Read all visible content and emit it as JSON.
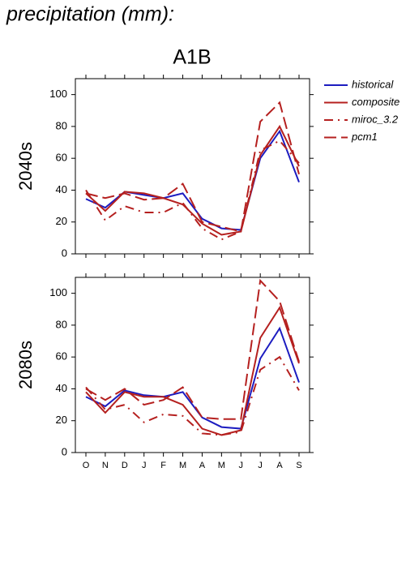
{
  "heading": "precipitation (mm):",
  "scenario": "A1B",
  "chart_data": [
    {
      "type": "line",
      "ylabel": "2040s",
      "ylim": [
        0,
        110
      ],
      "yticks": [
        0,
        20,
        40,
        60,
        80,
        100
      ],
      "series": [
        {
          "name": "historical",
          "color": "#1c1cc0",
          "dash": "solid",
          "values": [
            34.5,
            29,
            39,
            37,
            35,
            38,
            22,
            16,
            15,
            60,
            77,
            45
          ]
        },
        {
          "name": "composite",
          "color": "#b5201f",
          "dash": "solid",
          "values": [
            38,
            27,
            39,
            38,
            35,
            31,
            19,
            12,
            14,
            62,
            80,
            55
          ]
        },
        {
          "name": "miroc_3.2",
          "color": "#b5201f",
          "dash": "dashdot",
          "values": [
            40,
            21,
            30,
            26,
            26,
            32,
            16,
            9,
            14,
            65,
            71,
            57
          ]
        },
        {
          "name": "pcm1",
          "color": "#b5201f",
          "dash": "dashed",
          "values": [
            38,
            35,
            38,
            34,
            35,
            44,
            20,
            17,
            14,
            83,
            95,
            50
          ]
        }
      ]
    },
    {
      "type": "line",
      "ylabel": "2080s",
      "ylim": [
        0,
        110
      ],
      "yticks": [
        0,
        20,
        40,
        60,
        80,
        100
      ],
      "categories": [
        "O",
        "N",
        "D",
        "J",
        "F",
        "M",
        "A",
        "M",
        "J",
        "J",
        "A",
        "S"
      ],
      "series": [
        {
          "name": "historical",
          "color": "#1c1cc0",
          "dash": "solid",
          "values": [
            35,
            29,
            39,
            36,
            35,
            38,
            22,
            16,
            15,
            59,
            78,
            44
          ]
        },
        {
          "name": "composite",
          "color": "#b5201f",
          "dash": "solid",
          "values": [
            38,
            25,
            38,
            35,
            35,
            30,
            15,
            11,
            14,
            72,
            91,
            56
          ]
        },
        {
          "name": "miroc_3.2",
          "color": "#b5201f",
          "dash": "dashdot",
          "values": [
            41,
            27,
            30,
            19,
            24,
            23,
            12,
            11,
            13,
            52,
            60,
            39
          ]
        },
        {
          "name": "pcm1",
          "color": "#b5201f",
          "dash": "dashed",
          "values": [
            40,
            33,
            40,
            30,
            33,
            41,
            22,
            21,
            21,
            108,
            95,
            57
          ]
        }
      ]
    }
  ]
}
